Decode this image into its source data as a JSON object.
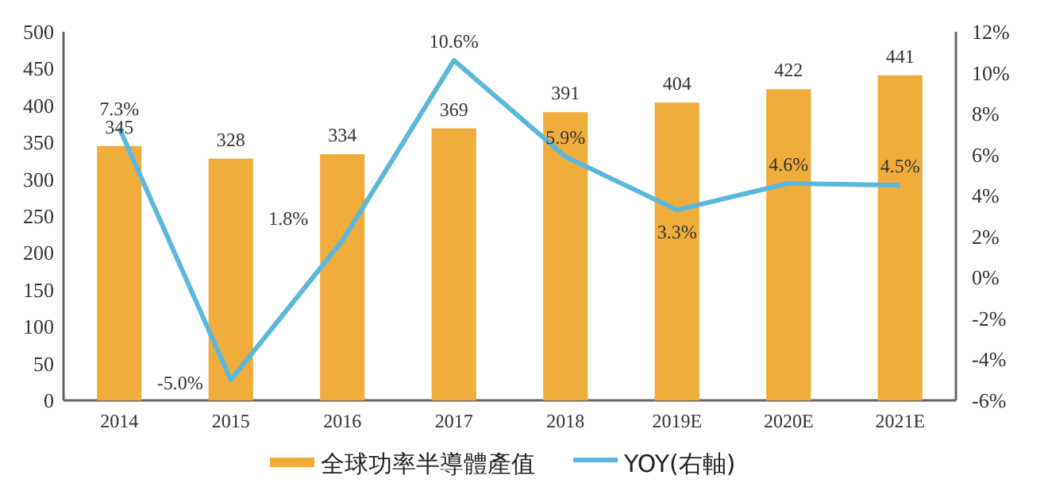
{
  "chart_data": {
    "type": "bar",
    "categories": [
      "2014",
      "2015",
      "2016",
      "2017",
      "2018",
      "2019E",
      "2020E",
      "2021E"
    ],
    "series": [
      {
        "name": "全球功率半導體產值",
        "color": "#f0ad3c",
        "values": [
          345,
          328,
          334,
          369,
          391,
          404,
          422,
          441
        ],
        "value_labels": [
          "345",
          "328",
          "334",
          "369",
          "391",
          "404",
          "422",
          "441"
        ]
      },
      {
        "name": "YOY(右軸)",
        "type": "line",
        "axis": "y2",
        "color": "#5bb8dc",
        "values": [
          7.3,
          -5.0,
          1.8,
          10.6,
          5.9,
          3.3,
          4.6,
          4.5
        ],
        "value_labels": [
          "7.3%",
          "-5.0%",
          "1.8%",
          "10.6%",
          "5.9%",
          "3.3%",
          "4.6%",
          "4.5%"
        ]
      }
    ],
    "ylim": [
      0,
      500
    ],
    "yticks": [
      0,
      50,
      100,
      150,
      200,
      250,
      300,
      350,
      400,
      450,
      500
    ],
    "y2lim": [
      -6,
      12
    ],
    "y2ticks": [
      {
        "value": -6,
        "label": "-6%"
      },
      {
        "value": -4,
        "label": "-4%"
      },
      {
        "value": -2,
        "label": "-2%"
      },
      {
        "value": 0,
        "label": "0%"
      },
      {
        "value": 2,
        "label": "2%"
      },
      {
        "value": 4,
        "label": "4%"
      },
      {
        "value": 6,
        "label": "6%"
      },
      {
        "value": 8,
        "label": "8%"
      },
      {
        "value": 10,
        "label": "10%"
      },
      {
        "value": 12,
        "label": "12%"
      }
    ],
    "legend": "bottom"
  }
}
